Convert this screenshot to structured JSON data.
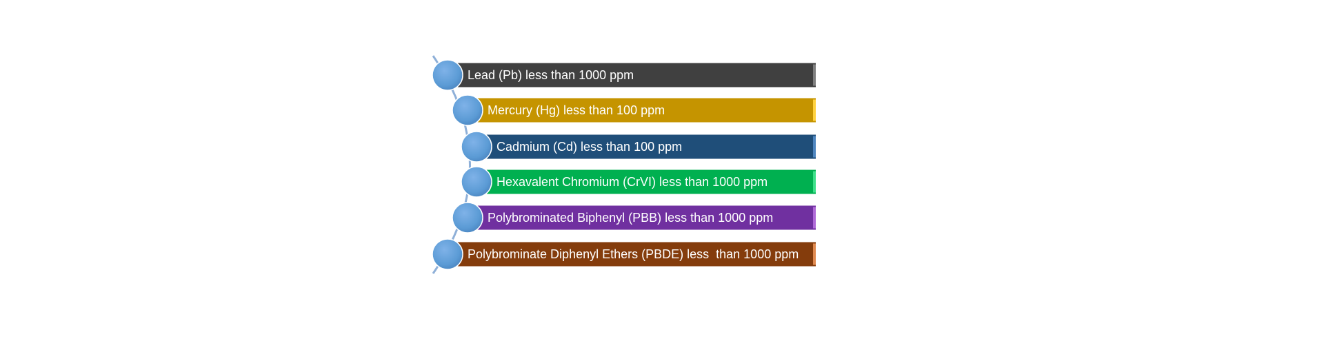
{
  "items": [
    {
      "label": "Lead (Pb) less than 1000 ppm"
    },
    {
      "label": "Mercury (Hg) less than 100 ppm"
    },
    {
      "label": "Cadmium (Cd) less than 100 ppm"
    },
    {
      "label": "Hexavalent Chromium (CrVI) less than 1000 ppm"
    },
    {
      "label": "Polybrominated Biphenyl (PBB) less than 1000 ppm"
    },
    {
      "label": "Polybrominate Diphenyl Ethers (PBDE) less  than 1000 ppm"
    }
  ]
}
